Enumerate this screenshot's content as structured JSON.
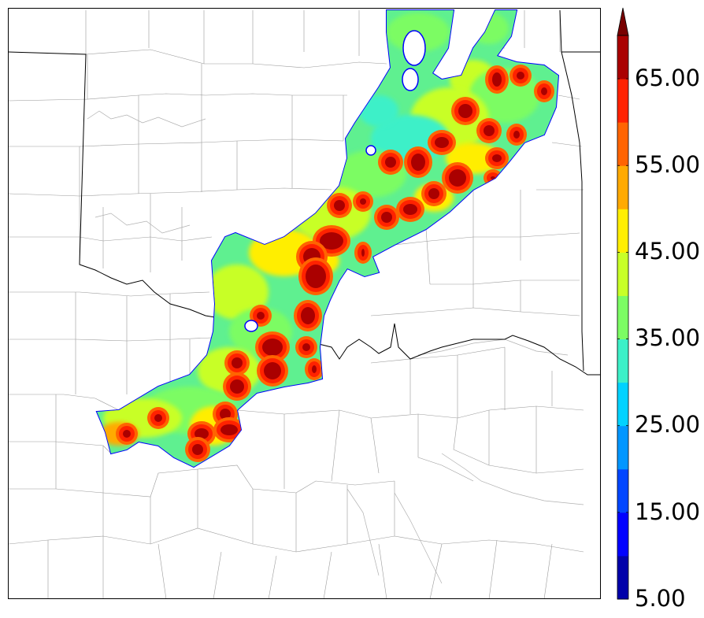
{
  "colorbar": {
    "labels": [
      "5.00",
      "15.00",
      "25.00",
      "35.00",
      "45.00",
      "55.00",
      "65.00"
    ],
    "min": 5,
    "max": 70,
    "step": 5,
    "extend": "max",
    "colors": [
      "#0000aa",
      "#0000ff",
      "#0046ff",
      "#0096ff",
      "#00d2ff",
      "#3cf0c8",
      "#7cfc64",
      "#c8ff28",
      "#ffee00",
      "#ffaa00",
      "#ff6400",
      "#ff2200",
      "#aa0000",
      "#780000"
    ]
  }
}
